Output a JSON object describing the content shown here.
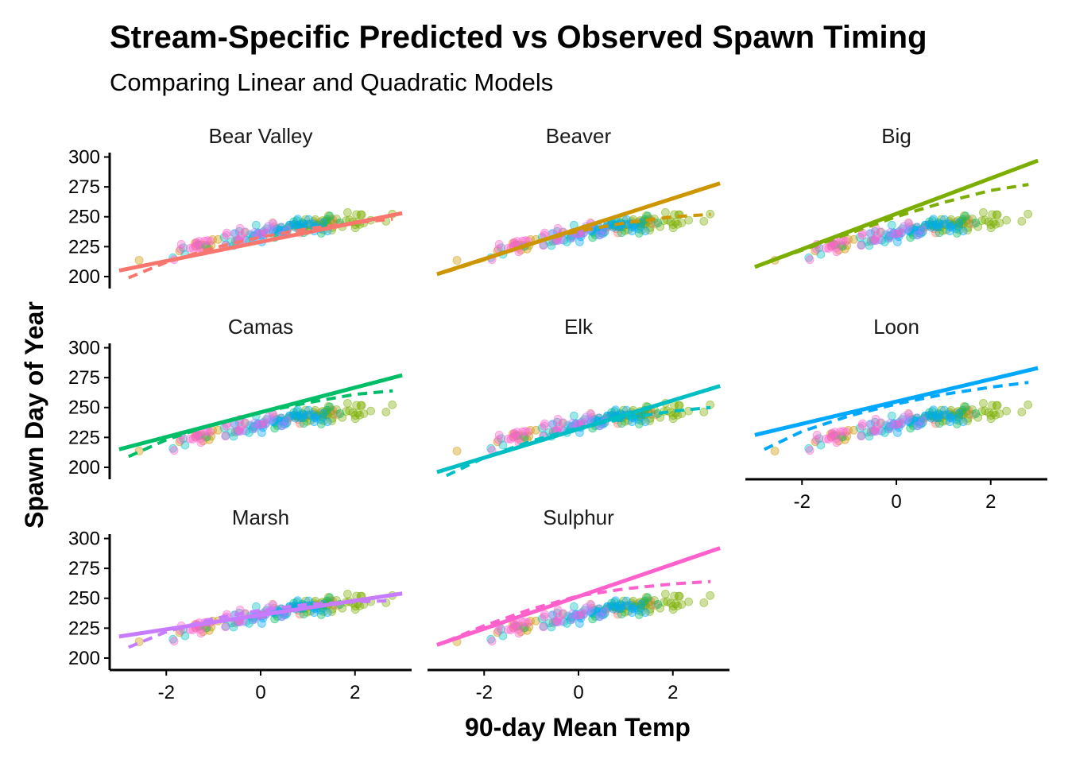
{
  "chart_data": {
    "type": "scatter",
    "title": "Stream-Specific Predicted vs Observed Spawn Timing",
    "subtitle": "Comparing Linear and Quadratic Models",
    "xlabel": "90-day Mean Temp",
    "ylabel": "Spawn Day of Year",
    "xlim": [
      -3.2,
      3.2
    ],
    "ylim": [
      190,
      305
    ],
    "x_ticks": [
      -2,
      0,
      2
    ],
    "x_tick_labels": [
      "-2",
      "0",
      "2"
    ],
    "y_ticks": [
      200,
      225,
      250,
      275,
      300
    ],
    "y_tick_labels": [
      "200",
      "225",
      "250",
      "275",
      "300"
    ],
    "grid": false,
    "legend": "none",
    "layout": {
      "rows": 3,
      "cols": 3
    },
    "streams": [
      {
        "name": "Bear Valley",
        "color": "#F8766D",
        "x_center": 1.0,
        "n": 16
      },
      {
        "name": "Beaver",
        "color": "#CD9600",
        "x_center": -1.2,
        "n": 16
      },
      {
        "name": "Big",
        "color": "#7CAE00",
        "x_center": 1.6,
        "n": 40
      },
      {
        "name": "Camas",
        "color": "#00BE67",
        "x_center": 0.6,
        "n": 22
      },
      {
        "name": "Elk",
        "color": "#00BFC4",
        "x_center": -0.5,
        "n": 22
      },
      {
        "name": "Loon",
        "color": "#00A9FF",
        "x_center": 0.6,
        "n": 30
      },
      {
        "name": "Marsh",
        "color": "#C77CFF",
        "x_center": 0.4,
        "n": 14
      },
      {
        "name": "Sulphur",
        "color": "#FF61CC",
        "x_center": -1.0,
        "n": 22
      }
    ],
    "panels": [
      {
        "stream": "Bear Valley",
        "linear": {
          "x": [
            -3.0,
            3.0
          ],
          "y": [
            205,
            253
          ]
        },
        "quadratic": {
          "x": [
            -2.8,
            -2.0,
            -1.0,
            0.0,
            1.0,
            2.0,
            2.8
          ],
          "y": [
            199,
            212,
            224,
            233,
            240,
            245,
            248
          ]
        }
      },
      {
        "stream": "Beaver",
        "linear": {
          "x": [
            -3.0,
            3.0
          ],
          "y": [
            202,
            278
          ]
        },
        "quadratic": {
          "x": [
            -2.8,
            -2.0,
            -1.0,
            0.0,
            1.0,
            2.0,
            2.8
          ],
          "y": [
            204,
            214,
            228,
            238,
            245,
            250,
            252
          ]
        }
      },
      {
        "stream": "Big",
        "linear": {
          "x": [
            -3.0,
            3.0
          ],
          "y": [
            208,
            297
          ]
        },
        "quadratic": {
          "x": [
            -2.8,
            -2.0,
            -1.0,
            0.0,
            1.0,
            2.0,
            2.8
          ],
          "y": [
            211,
            222,
            236,
            250,
            262,
            272,
            277
          ]
        }
      },
      {
        "stream": "Camas",
        "linear": {
          "x": [
            -3.0,
            3.0
          ],
          "y": [
            215,
            277
          ]
        },
        "quadratic": {
          "x": [
            -2.8,
            -2.0,
            -1.0,
            0.0,
            1.0,
            2.0,
            2.8
          ],
          "y": [
            209,
            223,
            236,
            246,
            254,
            261,
            264
          ]
        }
      },
      {
        "stream": "Elk",
        "linear": {
          "x": [
            -3.0,
            3.0
          ],
          "y": [
            196,
            268
          ]
        },
        "quadratic": {
          "x": [
            -2.8,
            -2.0,
            -1.0,
            0.0,
            1.0,
            2.0,
            2.8
          ],
          "y": [
            193,
            208,
            222,
            233,
            241,
            247,
            250
          ]
        }
      },
      {
        "stream": "Loon",
        "linear": {
          "x": [
            -3.0,
            3.0
          ],
          "y": [
            227,
            283
          ]
        },
        "quadratic": {
          "x": [
            -2.8,
            -2.0,
            -1.0,
            0.0,
            1.0,
            2.0,
            2.8
          ],
          "y": [
            215,
            230,
            243,
            253,
            261,
            267,
            271
          ]
        }
      },
      {
        "stream": "Marsh",
        "linear": {
          "x": [
            -3.0,
            3.0
          ],
          "y": [
            218,
            254
          ]
        },
        "quadratic": {
          "x": [
            -2.8,
            -2.0,
            -1.0,
            0.0,
            1.0,
            2.0,
            2.8
          ],
          "y": [
            209,
            222,
            233,
            240,
            245,
            247,
            248
          ]
        }
      },
      {
        "stream": "Sulphur",
        "linear": {
          "x": [
            -3.0,
            3.0
          ],
          "y": [
            211,
            292
          ]
        },
        "quadratic": {
          "x": [
            -2.8,
            -2.0,
            -1.0,
            0.0,
            1.0,
            2.0,
            2.8
          ],
          "y": [
            214,
            227,
            241,
            252,
            258,
            262,
            264
          ]
        }
      }
    ]
  }
}
